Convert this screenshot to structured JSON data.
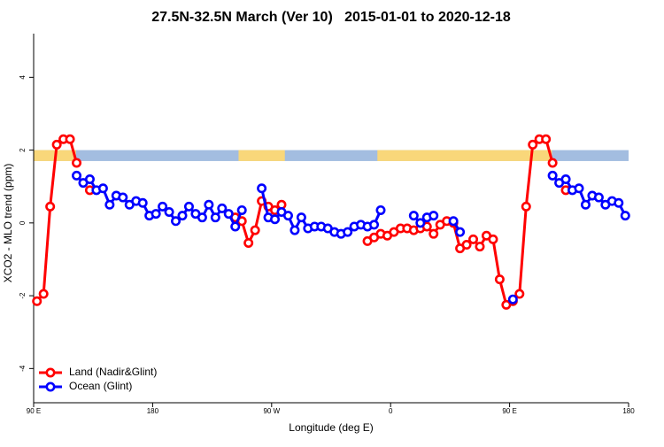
{
  "chart_data": {
    "type": "line",
    "title": "27.5N-32.5N March (Ver 10)   2015-01-01 to 2020-12-18",
    "xlabel": "Longitude (deg E)",
    "ylabel": "XCO2 - MLO trend (ppm)",
    "xlim": [
      90,
      540
    ],
    "ylim": [
      -4.94,
      5.2
    ],
    "xticks": [
      {
        "value": 90,
        "label": "90 E"
      },
      180,
      {
        "value": 270,
        "label": "90 W"
      },
      {
        "value": 360,
        "label": "0"
      },
      {
        "value": 450,
        "label": "90 E"
      },
      {
        "value": 540,
        "label": "180"
      }
    ],
    "yticks": [
      -4,
      -2,
      0,
      2,
      4
    ],
    "legend": "bottom-left",
    "strip": {
      "ylim": [
        1.7,
        2.0
      ],
      "color": "#a3bde0",
      "land_color": "#f9d77a",
      "land": [
        [
          90,
          122
        ],
        [
          245,
          280
        ],
        [
          350,
          482
        ]
      ]
    },
    "x": [
      92.5,
      97.5,
      102.5,
      107.5,
      112.5,
      117.5,
      122.5,
      127.5,
      132.5,
      137.5,
      142.5,
      147.5,
      152.5,
      157.5,
      162.5,
      167.5,
      172.5,
      177.5,
      182.5,
      187.5,
      192.5,
      197.5,
      202.5,
      207.5,
      212.5,
      217.5,
      222.5,
      227.5,
      232.5,
      237.5,
      242.5,
      247.5,
      252.5,
      257.5,
      262.5,
      267.5,
      272.5,
      277.5,
      282.5,
      287.5,
      292.5,
      297.5,
      302.5,
      307.5,
      312.5,
      317.5,
      322.5,
      327.5,
      332.5,
      337.5,
      342.5,
      347.5,
      352.5,
      357.5,
      362.5,
      367.5,
      372.5,
      377.5,
      382.5,
      387.5,
      392.5,
      397.5,
      402.5,
      407.5,
      412.5,
      417.5,
      422.5,
      427.5,
      432.5,
      437.5,
      442.5,
      447.5,
      452.5,
      457.5,
      462.5,
      467.5,
      472.5,
      477.5,
      482.5,
      487.5,
      492.5,
      497.5,
      502.5,
      507.5,
      512.5,
      517.5,
      522.5,
      527.5,
      532.5,
      537.5
    ],
    "series": [
      {
        "name": "Land (Nadir&Glint)",
        "color": "#ff0000",
        "values": [
          -2.15,
          -1.95,
          0.45,
          2.15,
          2.3,
          2.3,
          1.65,
          null,
          0.9,
          null,
          null,
          null,
          null,
          null,
          null,
          null,
          null,
          null,
          null,
          null,
          null,
          null,
          null,
          null,
          null,
          null,
          null,
          null,
          null,
          null,
          0.15,
          0.05,
          -0.55,
          -0.2,
          0.6,
          0.45,
          0.35,
          0.5,
          null,
          null,
          null,
          null,
          null,
          null,
          null,
          null,
          null,
          null,
          null,
          null,
          -0.5,
          -0.4,
          -0.3,
          -0.35,
          -0.25,
          -0.15,
          -0.15,
          -0.2,
          -0.15,
          -0.1,
          -0.3,
          -0.05,
          0.05,
          0.0,
          -0.7,
          -0.6,
          -0.45,
          -0.65,
          -0.35,
          -0.45,
          -1.55,
          -2.25,
          -2.15,
          -1.95,
          0.45,
          2.15,
          2.3,
          2.3,
          1.65,
          null,
          0.9,
          null,
          null,
          null,
          null,
          null,
          null,
          null,
          null,
          null
        ]
      },
      {
        "name": "Ocean (Glint)",
        "color": "#0000ff",
        "values": [
          null,
          null,
          null,
          null,
          null,
          null,
          1.3,
          1.1,
          1.2,
          0.9,
          0.95,
          0.5,
          0.75,
          0.7,
          0.5,
          0.6,
          0.55,
          0.2,
          0.25,
          0.45,
          0.3,
          0.05,
          0.2,
          0.45,
          0.25,
          0.15,
          0.5,
          0.15,
          0.4,
          0.25,
          -0.1,
          0.35,
          null,
          null,
          0.95,
          0.15,
          0.1,
          0.3,
          0.2,
          -0.2,
          0.15,
          -0.15,
          -0.1,
          -0.1,
          -0.15,
          -0.25,
          -0.3,
          -0.25,
          -0.1,
          -0.05,
          -0.1,
          -0.05,
          0.35,
          null,
          null,
          null,
          null,
          0.2,
          0.0,
          0.15,
          0.2,
          null,
          null,
          0.05,
          -0.25,
          null,
          null,
          null,
          null,
          null,
          null,
          null,
          -2.1,
          null,
          null,
          null,
          null,
          null,
          1.3,
          1.1,
          1.2,
          0.9,
          0.95,
          0.5,
          0.75,
          0.7,
          0.5,
          0.6,
          0.55,
          0.2
        ]
      }
    ]
  }
}
